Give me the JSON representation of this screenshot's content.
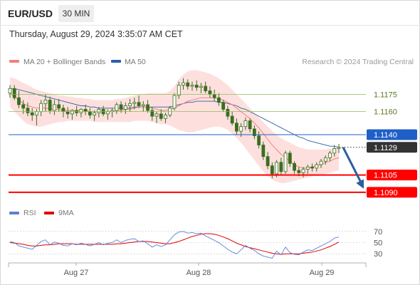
{
  "header": {
    "symbol": "EUR/USD",
    "interval": "30 MIN",
    "datetime": "Thursday, August 29, 2024 3:35:07 AM CET"
  },
  "legend": {
    "ma20": "MA 20 + Bollinger Bands",
    "ma50": "MA 50",
    "credit": "Research © 2024 Trading Central"
  },
  "rsi_legend": {
    "rsi": "RSI",
    "ma": "9MA"
  },
  "colors": {
    "ma20": "#f08080",
    "bollinger_fill": "#fde0de",
    "ma50": "#2a5fa8",
    "rsi": "#5b7fd6",
    "rsi_ma": "#e00000",
    "support": "#ff0000",
    "pivot": "#1f5fc8",
    "resistance": "#8fbc55",
    "current": "#333333",
    "arrow": "#2c5d9e",
    "candle": "#3a6e1f"
  },
  "chart_data": [
    {
      "type": "candlestick",
      "title": "EUR/USD 30 MIN",
      "x_ticks": [
        "Aug 27",
        "Aug 28",
        "Aug 29"
      ],
      "y_range": [
        1.1085,
        1.1195
      ],
      "levels": [
        {
          "label": "1.1175",
          "value": 1.1175,
          "role": "resistance"
        },
        {
          "label": "1.1160",
          "value": 1.116,
          "role": "resistance"
        },
        {
          "label": "1.1140",
          "value": 1.114,
          "role": "pivot"
        },
        {
          "label": "1.1129",
          "value": 1.1129,
          "role": "current"
        },
        {
          "label": "1.1105",
          "value": 1.1105,
          "role": "support"
        },
        {
          "label": "1.1090",
          "value": 1.109,
          "role": "support"
        }
      ],
      "forecast": {
        "from": 1.1129,
        "to": 1.109
      },
      "candles": [
        [
          1.1176,
          1.1183,
          1.1172,
          1.118
        ],
        [
          1.118,
          1.1183,
          1.117,
          1.1172
        ],
        [
          1.1172,
          1.1178,
          1.1163,
          1.1166
        ],
        [
          1.1166,
          1.117,
          1.1158,
          1.1163
        ],
        [
          1.1163,
          1.1168,
          1.1156,
          1.1159
        ],
        [
          1.1159,
          1.1163,
          1.1152,
          1.1157
        ],
        [
          1.1157,
          1.1162,
          1.1148,
          1.116
        ],
        [
          1.116,
          1.117,
          1.1156,
          1.1167
        ],
        [
          1.1167,
          1.1175,
          1.116,
          1.117
        ],
        [
          1.117,
          1.1173,
          1.1158,
          1.1161
        ],
        [
          1.1161,
          1.117,
          1.1157,
          1.1166
        ],
        [
          1.1166,
          1.1171,
          1.116,
          1.1163
        ],
        [
          1.1163,
          1.1166,
          1.1155,
          1.116
        ],
        [
          1.116,
          1.1164,
          1.1154,
          1.1158
        ],
        [
          1.1158,
          1.1162,
          1.1153,
          1.1161
        ],
        [
          1.1161,
          1.1165,
          1.1156,
          1.1159
        ],
        [
          1.1159,
          1.1163,
          1.1155,
          1.1162
        ],
        [
          1.1162,
          1.1166,
          1.1157,
          1.116
        ],
        [
          1.116,
          1.1163,
          1.1154,
          1.1157
        ],
        [
          1.1157,
          1.1161,
          1.1152,
          1.1159
        ],
        [
          1.1159,
          1.1164,
          1.1155,
          1.1162
        ],
        [
          1.1162,
          1.1165,
          1.1156,
          1.1158
        ],
        [
          1.1158,
          1.1162,
          1.1153,
          1.116
        ],
        [
          1.116,
          1.1163,
          1.1155,
          1.1161
        ],
        [
          1.1161,
          1.1168,
          1.1158,
          1.1166
        ],
        [
          1.1166,
          1.1169,
          1.1159,
          1.1162
        ],
        [
          1.1162,
          1.1168,
          1.1158,
          1.1165
        ],
        [
          1.1165,
          1.1171,
          1.116,
          1.1167
        ],
        [
          1.1167,
          1.1172,
          1.1162,
          1.1168
        ],
        [
          1.1168,
          1.1174,
          1.1163,
          1.1165
        ],
        [
          1.1165,
          1.1169,
          1.116,
          1.1166
        ],
        [
          1.1166,
          1.117,
          1.1159,
          1.1161
        ],
        [
          1.1161,
          1.1164,
          1.1152,
          1.1156
        ],
        [
          1.1156,
          1.116,
          1.115,
          1.1158
        ],
        [
          1.1158,
          1.1162,
          1.1152,
          1.1154
        ],
        [
          1.1154,
          1.1159,
          1.115,
          1.1157
        ],
        [
          1.1157,
          1.1165,
          1.1155,
          1.1163
        ],
        [
          1.1163,
          1.1176,
          1.1161,
          1.1174
        ],
        [
          1.1174,
          1.1186,
          1.1171,
          1.1183
        ],
        [
          1.1183,
          1.1189,
          1.1179,
          1.1185
        ],
        [
          1.1185,
          1.1188,
          1.1179,
          1.1182
        ],
        [
          1.1182,
          1.1186,
          1.1178,
          1.1183
        ],
        [
          1.1183,
          1.1187,
          1.1178,
          1.1181
        ],
        [
          1.1181,
          1.1185,
          1.1176,
          1.1182
        ],
        [
          1.1182,
          1.1186,
          1.1176,
          1.1178
        ],
        [
          1.1178,
          1.1182,
          1.1172,
          1.1175
        ],
        [
          1.1175,
          1.1179,
          1.1169,
          1.1172
        ],
        [
          1.1172,
          1.1176,
          1.1165,
          1.1168
        ],
        [
          1.1168,
          1.117,
          1.116,
          1.1162
        ],
        [
          1.1162,
          1.1165,
          1.1153,
          1.1156
        ],
        [
          1.1156,
          1.116,
          1.1148,
          1.115
        ],
        [
          1.115,
          1.1154,
          1.114,
          1.1143
        ],
        [
          1.1143,
          1.115,
          1.1138,
          1.1147
        ],
        [
          1.1147,
          1.1155,
          1.1144,
          1.1152
        ],
        [
          1.1152,
          1.1154,
          1.1142,
          1.1145
        ],
        [
          1.1145,
          1.1148,
          1.1136,
          1.1139
        ],
        [
          1.1139,
          1.1143,
          1.1128,
          1.1131
        ],
        [
          1.1131,
          1.1134,
          1.1118,
          1.1121
        ],
        [
          1.1121,
          1.1125,
          1.111,
          1.1113
        ],
        [
          1.1113,
          1.1116,
          1.1102,
          1.1106
        ],
        [
          1.1106,
          1.1118,
          1.1103,
          1.1116
        ],
        [
          1.1116,
          1.112,
          1.1105,
          1.1108
        ],
        [
          1.1108,
          1.1126,
          1.1106,
          1.1124
        ],
        [
          1.1124,
          1.1126,
          1.1112,
          1.1115
        ],
        [
          1.1115,
          1.1117,
          1.1106,
          1.1109
        ],
        [
          1.1109,
          1.1112,
          1.1104,
          1.1107
        ],
        [
          1.1107,
          1.1112,
          1.1103,
          1.111
        ],
        [
          1.111,
          1.1114,
          1.1106,
          1.1112
        ],
        [
          1.1112,
          1.1115,
          1.1108,
          1.1111
        ],
        [
          1.1111,
          1.1116,
          1.1108,
          1.1114
        ],
        [
          1.1114,
          1.1119,
          1.1111,
          1.1117
        ],
        [
          1.1117,
          1.1122,
          1.1114,
          1.112
        ],
        [
          1.112,
          1.1126,
          1.1117,
          1.1124
        ],
        [
          1.1124,
          1.1131,
          1.1121,
          1.1128
        ],
        [
          1.1128,
          1.1132,
          1.1124,
          1.1129
        ]
      ],
      "ma20": [
        1.1176,
        1.1173,
        1.117,
        1.1167,
        1.1165,
        1.1164,
        1.1163,
        1.1163,
        1.1163,
        1.1162,
        1.1162,
        1.1162,
        1.1161,
        1.1161,
        1.1161,
        1.1161,
        1.1161,
        1.1161,
        1.116,
        1.116,
        1.116,
        1.116,
        1.116,
        1.116,
        1.1161,
        1.1161,
        1.1162,
        1.1162,
        1.1163,
        1.1164,
        1.1164,
        1.1164,
        1.1163,
        1.1162,
        1.1161,
        1.1161,
        1.1162,
        1.1163,
        1.1165,
        1.1167,
        1.1169,
        1.117,
        1.1171,
        1.1172,
        1.1172,
        1.1172,
        1.1172,
        1.1171,
        1.117,
        1.1168,
        1.1166,
        1.1163,
        1.116,
        1.1157,
        1.1154,
        1.115,
        1.1146,
        1.1141,
        1.1136,
        1.1131,
        1.1127,
        1.1123,
        1.112,
        1.1117,
        1.1114,
        1.1112,
        1.1111,
        1.1111,
        1.1112,
        1.1113,
        1.1114,
        1.1116,
        1.1117,
        1.1119,
        1.112
      ],
      "bollinger_upper": [
        1.119,
        1.1189,
        1.1187,
        1.1185,
        1.1183,
        1.1181,
        1.1179,
        1.1178,
        1.1177,
        1.1176,
        1.1175,
        1.1174,
        1.1174,
        1.1173,
        1.1173,
        1.1172,
        1.1172,
        1.1171,
        1.1171,
        1.117,
        1.117,
        1.117,
        1.117,
        1.117,
        1.1171,
        1.1171,
        1.1172,
        1.1173,
        1.1174,
        1.1175,
        1.1175,
        1.1176,
        1.1176,
        1.1176,
        1.1176,
        1.1176,
        1.1178,
        1.1182,
        1.1188,
        1.1192,
        1.1195,
        1.1196,
        1.1196,
        1.1195,
        1.1194,
        1.1193,
        1.1191,
        1.1189,
        1.1186,
        1.1183,
        1.1179,
        1.1175,
        1.1171,
        1.1167,
        1.1163,
        1.1159,
        1.1155,
        1.1151,
        1.1147,
        1.1143,
        1.114,
        1.1137,
        1.1135,
        1.1133,
        1.1131,
        1.1129,
        1.1128,
        1.1127,
        1.1127,
        1.1127,
        1.1127,
        1.1127,
        1.1128,
        1.1128,
        1.1129
      ],
      "bollinger_lower": [
        1.1164,
        1.116,
        1.1156,
        1.1152,
        1.1149,
        1.1148,
        1.1147,
        1.1147,
        1.1148,
        1.1149,
        1.115,
        1.1151,
        1.1151,
        1.1152,
        1.1152,
        1.1152,
        1.1152,
        1.1152,
        1.1152,
        1.1151,
        1.1151,
        1.1151,
        1.1151,
        1.1151,
        1.1151,
        1.1151,
        1.1151,
        1.1151,
        1.1152,
        1.1152,
        1.1152,
        1.1152,
        1.1151,
        1.115,
        1.1149,
        1.1149,
        1.1148,
        1.1146,
        1.1144,
        1.1143,
        1.1142,
        1.1142,
        1.1143,
        1.1144,
        1.1145,
        1.1146,
        1.1147,
        1.1147,
        1.1146,
        1.1144,
        1.1141,
        1.1137,
        1.1133,
        1.1128,
        1.1123,
        1.1118,
        1.1113,
        1.1108,
        1.1104,
        1.1101,
        1.1099,
        1.1098,
        1.1098,
        1.1099,
        1.11,
        1.1101,
        1.1102,
        1.1103,
        1.1104,
        1.1105,
        1.1105,
        1.1106,
        1.1107,
        1.1108,
        1.1109
      ],
      "ma50": [
        1.118,
        1.118,
        1.1179,
        1.1178,
        1.1177,
        1.1176,
        1.1175,
        1.1174,
        1.1173,
        1.1172,
        1.1171,
        1.117,
        1.1169,
        1.1168,
        1.1167,
        1.1166,
        1.1165,
        1.1165,
        1.1164,
        1.1164,
        1.1163,
        1.1163,
        1.1163,
        1.1163,
        1.1163,
        1.1163,
        1.1163,
        1.1163,
        1.1164,
        1.1164,
        1.1164,
        1.1164,
        1.1164,
        1.1164,
        1.1164,
        1.1164,
        1.1164,
        1.1165,
        1.1166,
        1.1167,
        1.1168,
        1.1168,
        1.1169,
        1.1169,
        1.1169,
        1.1169,
        1.1169,
        1.1168,
        1.1168,
        1.1167,
        1.1166,
        1.1165,
        1.1163,
        1.1162,
        1.116,
        1.1158,
        1.1156,
        1.1154,
        1.1152,
        1.115,
        1.1148,
        1.1146,
        1.1144,
        1.1142,
        1.114,
        1.1138,
        1.1137,
        1.1135,
        1.1134,
        1.1133,
        1.1132,
        1.1131,
        1.113,
        1.113,
        1.1129
      ]
    },
    {
      "type": "line",
      "title": "RSI",
      "y_ticks": [
        70,
        50,
        30
      ],
      "y_range": [
        20,
        80
      ],
      "series": [
        {
          "name": "RSI",
          "values": [
            52,
            50,
            44,
            42,
            40,
            38,
            45,
            52,
            55,
            46,
            51,
            49,
            45,
            44,
            48,
            46,
            49,
            47,
            44,
            47,
            50,
            46,
            49,
            50,
            55,
            50,
            54,
            56,
            57,
            52,
            53,
            48,
            42,
            46,
            43,
            46,
            55,
            64,
            69,
            70,
            67,
            68,
            66,
            67,
            62,
            58,
            54,
            50,
            44,
            38,
            33,
            30,
            37,
            45,
            40,
            36,
            30,
            26,
            24,
            22,
            35,
            28,
            42,
            32,
            29,
            28,
            33,
            37,
            36,
            40,
            44,
            48,
            52,
            58,
            60
          ]
        },
        {
          "name": "9MA",
          "values": [
            50,
            49,
            48,
            47,
            45,
            44,
            44,
            45,
            46,
            46,
            47,
            48,
            48,
            48,
            48,
            47,
            47,
            47,
            47,
            47,
            47,
            47,
            47,
            47,
            48,
            48,
            49,
            50,
            51,
            52,
            52,
            52,
            51,
            50,
            49,
            48,
            48,
            50,
            52,
            55,
            58,
            61,
            63,
            65,
            66,
            66,
            65,
            63,
            60,
            57,
            53,
            49,
            46,
            43,
            41,
            39,
            37,
            35,
            33,
            31,
            30,
            29,
            30,
            30,
            30,
            30,
            31,
            32,
            33,
            35,
            37,
            40,
            43,
            47,
            51
          ]
        }
      ]
    }
  ]
}
